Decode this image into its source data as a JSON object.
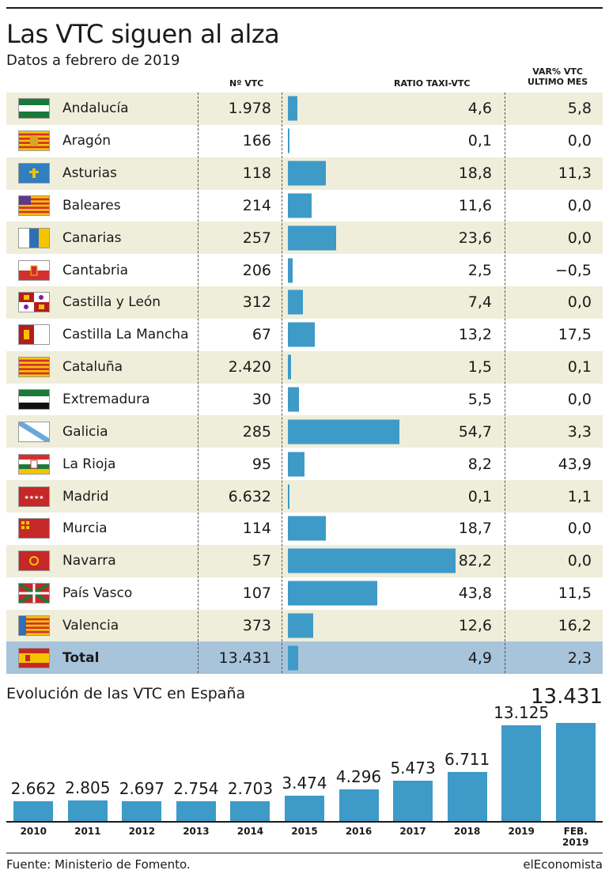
{
  "title": "Las VTC siguen al alza",
  "subtitle": "Datos a febrero de 2019",
  "headers": {
    "nvtc": "Nº VTC",
    "ratio": "RATIO TAXI-VTC",
    "var_line1": "VAR% VTC",
    "var_line2": "ULTIMO MES"
  },
  "rows": [
    {
      "name": "Andalucía",
      "nvtc": "1.978",
      "ratio": "4,6",
      "var": "5,8",
      "ratio_value": 4.6,
      "flag": "andalucia-flag"
    },
    {
      "name": "Aragón",
      "nvtc": "166",
      "ratio": "0,1",
      "var": "0,0",
      "ratio_value": 0.1,
      "flag": "aragon-flag"
    },
    {
      "name": "Asturias",
      "nvtc": "118",
      "ratio": "18,8",
      "var": "11,3",
      "ratio_value": 18.8,
      "flag": "asturias-flag"
    },
    {
      "name": "Baleares",
      "nvtc": "214",
      "ratio": "11,6",
      "var": "0,0",
      "ratio_value": 11.6,
      "flag": "baleares-flag"
    },
    {
      "name": "Canarias",
      "nvtc": "257",
      "ratio": "23,6",
      "var": "0,0",
      "ratio_value": 23.6,
      "flag": "canarias-flag"
    },
    {
      "name": "Cantabria",
      "nvtc": "206",
      "ratio": "2,5",
      "var": "−0,5",
      "ratio_value": 2.5,
      "flag": "cantabria-flag"
    },
    {
      "name": "Castilla y León",
      "nvtc": "312",
      "ratio": "7,4",
      "var": "0,0",
      "ratio_value": 7.4,
      "flag": "castilla-leon-flag"
    },
    {
      "name": "Castilla La Mancha",
      "nvtc": "67",
      "ratio": "13,2",
      "var": "17,5",
      "ratio_value": 13.2,
      "flag": "castilla-la-mancha-flag"
    },
    {
      "name": "Cataluña",
      "nvtc": "2.420",
      "ratio": "1,5",
      "var": "0,1",
      "ratio_value": 1.5,
      "flag": "cataluna-flag"
    },
    {
      "name": "Extremadura",
      "nvtc": "30",
      "ratio": "5,5",
      "var": "0,0",
      "ratio_value": 5.5,
      "flag": "extremadura-flag"
    },
    {
      "name": "Galicia",
      "nvtc": "285",
      "ratio": "54,7",
      "var": "3,3",
      "ratio_value": 54.7,
      "flag": "galicia-flag"
    },
    {
      "name": "La Rioja",
      "nvtc": "95",
      "ratio": "8,2",
      "var": "43,9",
      "ratio_value": 8.2,
      "flag": "la-rioja-flag"
    },
    {
      "name": "Madrid",
      "nvtc": "6.632",
      "ratio": "0,1",
      "var": "1,1",
      "ratio_value": 0.1,
      "flag": "madrid-flag"
    },
    {
      "name": "Murcia",
      "nvtc": "114",
      "ratio": "18,7",
      "var": "0,0",
      "ratio_value": 18.7,
      "flag": "murcia-flag"
    },
    {
      "name": "Navarra",
      "nvtc": "57",
      "ratio": "82,2",
      "var": "0,0",
      "ratio_value": 82.2,
      "flag": "navarra-flag"
    },
    {
      "name": "País Vasco",
      "nvtc": "107",
      "ratio": "43,8",
      "var": "11,5",
      "ratio_value": 43.8,
      "flag": "pais-vasco-flag"
    },
    {
      "name": "Valencia",
      "nvtc": "373",
      "ratio": "12,6",
      "var": "16,2",
      "ratio_value": 12.6,
      "flag": "valencia-flag"
    }
  ],
  "total": {
    "name": "Total",
    "nvtc": "13.431",
    "ratio": "4,9",
    "var": "2,3",
    "ratio_value": 4.9,
    "flag": "spain-flag"
  },
  "evolution": {
    "title": "Evolución de las VTC en España",
    "highlight": "13.431"
  },
  "chart_data": [
    {
      "type": "table",
      "columns": [
        "",
        "Nº VTC",
        "RATIO TAXI-VTC",
        "VAR% VTC ULTIMO MES"
      ],
      "bar_column": "RATIO TAXI-VTC",
      "categories": [
        "Andalucía",
        "Aragón",
        "Asturias",
        "Baleares",
        "Canarias",
        "Cantabria",
        "Castilla y León",
        "Castilla La Mancha",
        "Cataluña",
        "Extremadura",
        "Galicia",
        "La Rioja",
        "Madrid",
        "Murcia",
        "Navarra",
        "País Vasco",
        "Valencia",
        "Total"
      ],
      "nvtc": [
        1978,
        166,
        118,
        214,
        257,
        206,
        312,
        67,
        2420,
        30,
        285,
        95,
        6632,
        114,
        57,
        107,
        373,
        13431
      ],
      "ratio": [
        4.6,
        0.1,
        18.8,
        11.6,
        23.6,
        2.5,
        7.4,
        13.2,
        1.5,
        5.5,
        54.7,
        8.2,
        0.1,
        18.7,
        82.2,
        43.8,
        12.6,
        4.9
      ],
      "var_pct": [
        5.8,
        0.0,
        11.3,
        0.0,
        0.0,
        -0.5,
        0.0,
        17.5,
        0.1,
        0.0,
        3.3,
        43.9,
        1.1,
        0.0,
        0.0,
        11.5,
        16.2,
        2.3
      ],
      "title": "Las VTC siguen al alza",
      "subtitle": "Datos a febrero de 2019"
    },
    {
      "type": "bar",
      "title": "Evolución de las VTC en España",
      "categories": [
        "2010",
        "2011",
        "2012",
        "2013",
        "2014",
        "2015",
        "2016",
        "2017",
        "2018",
        "2019",
        "FEB. 2019"
      ],
      "values": [
        2662,
        2805,
        2697,
        2754,
        2703,
        3474,
        4296,
        5473,
        6711,
        13125,
        13431
      ],
      "labels": [
        "2.662",
        "2.805",
        "2.697",
        "2.754",
        "2.703",
        "3.474",
        "4.296",
        "5.473",
        "6.711",
        "13.125",
        "13.431"
      ],
      "ylim": [
        0,
        13431
      ]
    }
  ],
  "footer": {
    "source": "Fuente: Ministerio de Fomento.",
    "brand": "elEconomista"
  },
  "colors": {
    "bar": "#3e9ac7",
    "alt_row": "#efeedb",
    "total_row": "#a7c4db"
  }
}
